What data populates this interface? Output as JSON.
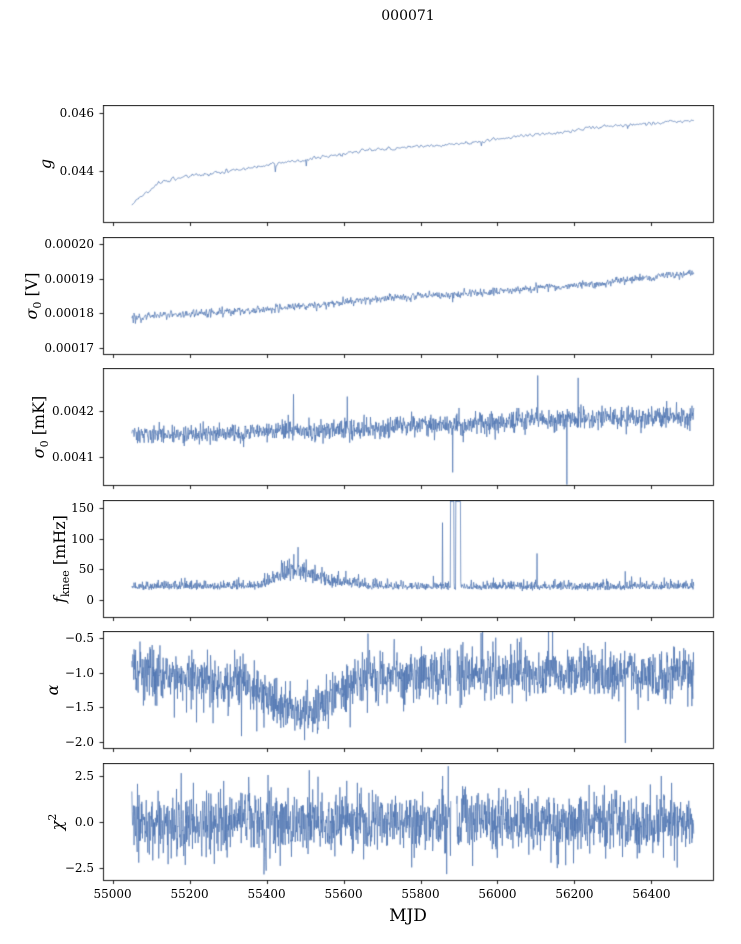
{
  "title": "000071",
  "xlabel": "MJD",
  "accent_color": "#4c72b0",
  "frame_color": "#000000",
  "chart_data": {
    "type": "line",
    "title": "000071",
    "xlabel": "MJD",
    "xlim": [
      54975,
      56560
    ],
    "x_range": [
      55050,
      56510
    ],
    "grid": false,
    "legend": "none",
    "xticks": {
      "values": [
        55000,
        55200,
        55400,
        55600,
        55800,
        56000,
        56200,
        56400
      ],
      "labels": [
        "55000",
        "55200",
        "55400",
        "55600",
        "55800",
        "56000",
        "56200",
        "56400"
      ]
    },
    "panels": [
      {
        "name": "g",
        "ylabel": {
          "main": "g",
          "sub": "",
          "sup": "",
          "rest": ""
        },
        "ylim": [
          0.04225,
          0.04625
        ],
        "yticks": [
          0.044,
          0.046
        ],
        "ytick_labels": [
          "0.044",
          "0.046"
        ],
        "trend": [
          [
            55050,
            0.0429
          ],
          [
            55080,
            0.0432
          ],
          [
            55120,
            0.0436
          ],
          [
            55180,
            0.0438
          ],
          [
            55250,
            0.0439
          ],
          [
            55350,
            0.0441
          ],
          [
            55450,
            0.0443
          ],
          [
            55550,
            0.0445
          ],
          [
            55650,
            0.0447
          ],
          [
            55750,
            0.0448
          ],
          [
            55850,
            0.0449
          ],
          [
            55950,
            0.045
          ],
          [
            56050,
            0.0452
          ],
          [
            56150,
            0.0453
          ],
          [
            56250,
            0.0455
          ],
          [
            56350,
            0.0456
          ],
          [
            56450,
            0.0457
          ],
          [
            56510,
            0.0457
          ]
        ],
        "noise": {
          "sigma": 5e-05,
          "smooth": 3
        },
        "spikes": [
          [
            55422,
            0.04398
          ],
          [
            55503,
            0.04418
          ],
          [
            55958,
            0.04487
          ],
          [
            56338,
            0.04546
          ]
        ],
        "blocks": [],
        "gaps": [],
        "n_points": 800,
        "seed": 11
      },
      {
        "name": "sigma0_V",
        "ylabel": {
          "main": "σ",
          "sub": "0",
          "sup": "",
          "rest": " [V]"
        },
        "ylim": [
          0.000168,
          0.000202
        ],
        "yticks": [
          0.00017,
          0.00018,
          0.00019,
          0.0002
        ],
        "ytick_labels": [
          "0.00017",
          "0.00018",
          "0.00019",
          "0.00020"
        ],
        "trend": [
          [
            55050,
            0.0001785
          ],
          [
            55150,
            0.0001795
          ],
          [
            55250,
            0.0001802
          ],
          [
            55350,
            0.0001808
          ],
          [
            55450,
            0.0001815
          ],
          [
            55550,
            0.0001826
          ],
          [
            55650,
            0.0001838
          ],
          [
            55750,
            0.0001845
          ],
          [
            55850,
            0.0001852
          ],
          [
            55950,
            0.0001858
          ],
          [
            56050,
            0.0001868
          ],
          [
            56150,
            0.0001878
          ],
          [
            56250,
            0.0001884
          ],
          [
            56350,
            0.0001896
          ],
          [
            56450,
            0.0001912
          ],
          [
            56510,
            0.0001918
          ]
        ],
        "noise": {
          "sigma": 8e-07,
          "smooth": 2
        },
        "spikes": [
          [
            55884,
            0.0001832
          ]
        ],
        "blocks": [],
        "gaps": [],
        "n_points": 1600,
        "seed": 22
      },
      {
        "name": "sigma0_mK",
        "ylabel": {
          "main": "σ",
          "sub": "0",
          "sup": "",
          "rest": " [mK]"
        },
        "ylim": [
          0.00404,
          0.00429
        ],
        "yticks": [
          0.0041,
          0.0042
        ],
        "ytick_labels": [
          "0.0041",
          "0.0042"
        ],
        "trend": [
          [
            55050,
            0.004152
          ],
          [
            55150,
            0.004148
          ],
          [
            55250,
            0.00415
          ],
          [
            55350,
            0.004152
          ],
          [
            55450,
            0.004158
          ],
          [
            55550,
            0.004158
          ],
          [
            55650,
            0.004162
          ],
          [
            55750,
            0.004165
          ],
          [
            55850,
            0.004168
          ],
          [
            55950,
            0.004172
          ],
          [
            56050,
            0.004178
          ],
          [
            56150,
            0.004182
          ],
          [
            56250,
            0.004185
          ],
          [
            56350,
            0.004183
          ],
          [
            56450,
            0.004186
          ],
          [
            56510,
            0.004188
          ]
        ],
        "noise": {
          "profile": [
            [
              55050,
              9.5e-06
            ],
            [
              55300,
              9.5e-06
            ],
            [
              55500,
              1.05e-05
            ],
            [
              55800,
              1.1e-05
            ],
            [
              55900,
              1.1e-05
            ],
            [
              56000,
              1.25e-05
            ],
            [
              56150,
              1.35e-05
            ],
            [
              56350,
              1.2e-05
            ],
            [
              56510,
              1.25e-05
            ]
          ]
        },
        "spikes": [
          [
            55470,
            0.004235
          ],
          [
            55610,
            0.00423
          ],
          [
            55884,
            0.004068
          ],
          [
            56105,
            0.004275
          ],
          [
            56180,
            0.004042
          ],
          [
            56210,
            0.00427
          ]
        ],
        "blocks": [],
        "gaps": [],
        "n_points": 1600,
        "seed": 33
      },
      {
        "name": "f_knee",
        "ylabel": {
          "main": "f",
          "sub": "knee",
          "sup": "",
          "rest": " [mHz]"
        },
        "ylim": [
          -28,
          162
        ],
        "yticks": [
          0,
          50,
          100,
          150
        ],
        "ytick_labels": [
          "0",
          "50",
          "100",
          "150"
        ],
        "trend": [
          [
            55050,
            20
          ],
          [
            55380,
            21
          ],
          [
            55420,
            32
          ],
          [
            55450,
            40
          ],
          [
            55480,
            42
          ],
          [
            55510,
            38
          ],
          [
            55545,
            30
          ],
          [
            55575,
            25
          ],
          [
            55600,
            28
          ],
          [
            55625,
            24
          ],
          [
            55660,
            21
          ],
          [
            55700,
            20
          ],
          [
            56510,
            20
          ]
        ],
        "noise": {
          "skew": true,
          "profile": [
            [
              55050,
              5
            ],
            [
              55390,
              5
            ],
            [
              55430,
              11
            ],
            [
              55470,
              13
            ],
            [
              55520,
              11
            ],
            [
              55560,
              8
            ],
            [
              55610,
              8
            ],
            [
              55650,
              6
            ],
            [
              55700,
              5
            ],
            [
              56510,
              5
            ]
          ]
        },
        "spikes": [
          [
            55857,
            126
          ],
          [
            56103,
            76
          ],
          [
            56332,
            47
          ]
        ],
        "blocks": [
          {
            "x0": 55878,
            "x1": 55887,
            "v": 172
          },
          {
            "x0": 55891,
            "x1": 55904,
            "v": 172
          }
        ],
        "gaps": [],
        "n_points": 1600,
        "seed": 44
      },
      {
        "name": "alpha",
        "ylabel": {
          "main": "α",
          "sub": "",
          "sup": "",
          "rest": ""
        },
        "ylim": [
          -2.1,
          -0.4
        ],
        "yticks": [
          -2.0,
          -1.5,
          -1.0,
          -0.5
        ],
        "ytick_labels": [
          "−2.0",
          "−1.5",
          "−1.0",
          "−0.5"
        ],
        "trend": [
          [
            55050,
            -1.0
          ],
          [
            55200,
            -1.05
          ],
          [
            55280,
            -1.2
          ],
          [
            55340,
            -1.1
          ],
          [
            55400,
            -1.35
          ],
          [
            55440,
            -1.5
          ],
          [
            55480,
            -1.55
          ],
          [
            55530,
            -1.55
          ],
          [
            55570,
            -1.35
          ],
          [
            55610,
            -1.2
          ],
          [
            55660,
            -1.05
          ],
          [
            55800,
            -1.02
          ],
          [
            56510,
            -1.02
          ]
        ],
        "noise": {
          "sigma": 0.19
        },
        "spikes": [
          [
            55160,
            -1.65
          ],
          [
            55218,
            -1.72
          ],
          [
            55335,
            -1.92
          ],
          [
            56332,
            -2.02
          ]
        ],
        "blocks": [],
        "gaps": [
          [
            55879,
            55894
          ]
        ],
        "n_points": 1800,
        "seed": 55
      },
      {
        "name": "chi2",
        "ylabel": {
          "main": "χ",
          "sub": "",
          "sup": "2",
          "rest": ""
        },
        "ylim": [
          -3.2,
          3.2
        ],
        "yticks": [
          -2.5,
          0.0,
          2.5
        ],
        "ytick_labels": [
          "−2.5",
          "0.0",
          "2.5"
        ],
        "trend": [
          [
            55050,
            0
          ],
          [
            56510,
            0
          ]
        ],
        "noise": {
          "sigma": 0.85
        },
        "spikes": [
          [
            55868,
            -2.85
          ],
          [
            55872,
            3.05
          ]
        ],
        "blocks": [],
        "gaps": [
          [
            55879,
            55894
          ]
        ],
        "n_points": 1800,
        "seed": 66
      }
    ]
  }
}
